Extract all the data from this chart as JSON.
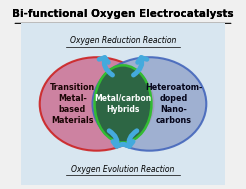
{
  "title": "Bi-functional Oxygen Electrocatalysts",
  "top_label": "Oxygen Reduction Reaction",
  "bottom_label": "Oxygen Evolution Reaction",
  "left_circle_text": "Transition\nMetal-\nbased\nMaterials",
  "center_circle_text": "Metal/carbon\nHybrids",
  "right_circle_text": "Heteroatom-\ndoped\nNano-\ncarbons",
  "bg_color": "#d8e6f0",
  "left_circle_face": "#cc7799",
  "left_circle_edge": "#cc2222",
  "right_circle_face": "#99aace",
  "right_circle_edge": "#4466bb",
  "center_circle_face": "#2d6644",
  "center_circle_edge": "#33bb33",
  "arrow_color": "#44aadd",
  "title_color": "#000000",
  "label_color": "#000000",
  "box_bg": "#e8eef4",
  "box_edge": "#999999"
}
